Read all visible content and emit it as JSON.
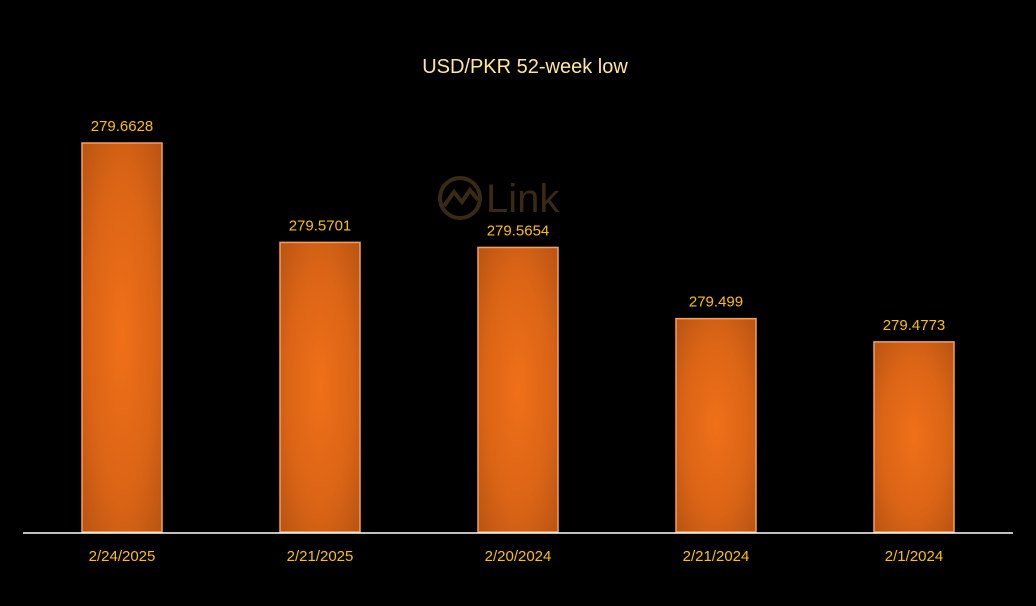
{
  "chart_data": {
    "type": "bar",
    "title": "USD/PKR 52-week low",
    "categories": [
      "2/24/2025",
      "2/21/2025",
      "2/20/2024",
      "2/21/2024",
      "2/1/2024"
    ],
    "values": [
      279.6628,
      279.5701,
      279.5654,
      279.499,
      279.4773
    ],
    "value_labels": [
      "279.6628",
      "279.5701",
      "279.5654",
      "279.499",
      "279.4773"
    ],
    "xlabel": "",
    "ylabel": "",
    "ylim": [
      279.3,
      279.68
    ],
    "grid": false,
    "legend": "none"
  },
  "watermark": {
    "text": "Link",
    "icon": "chart-circle-icon"
  },
  "colors": {
    "background": "#000000",
    "bar_edge": "#C85A14",
    "bar_center": "#F07018",
    "bar_outline": "#F4A060",
    "title": "#FFE699",
    "labels": "#FFC000",
    "axis": "#FFFFFF"
  }
}
